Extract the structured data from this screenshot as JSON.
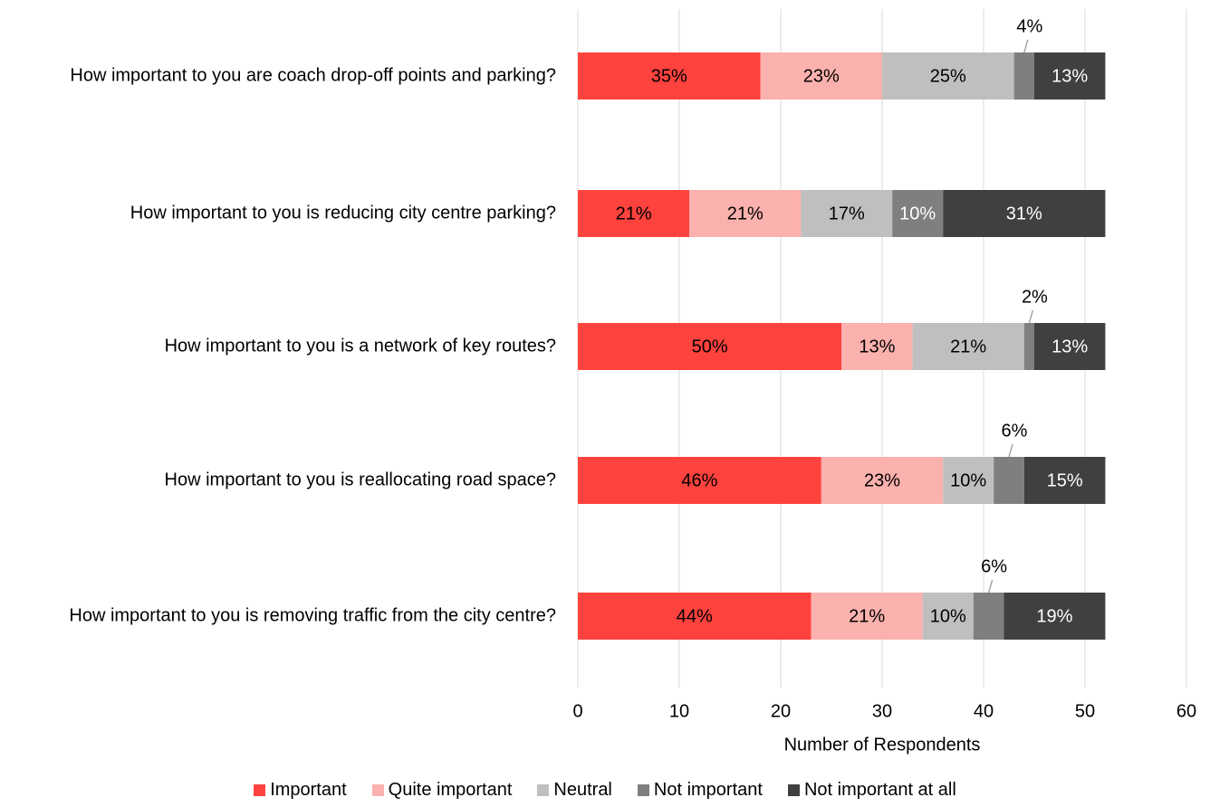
{
  "chart_data": {
    "type": "stacked-barh",
    "categories": [
      "How important to you are coach drop-off points and parking?",
      "How important to you is reducing city centre parking?",
      "How important to you is a network of key routes?",
      "How important to you is reallocating road space?",
      "How important to you is removing traffic from the city centre?"
    ],
    "series": [
      {
        "name": "Important",
        "color": "#fe423d",
        "values": [
          18,
          11,
          26,
          24,
          23
        ],
        "value_labels": [
          "35%",
          "21%",
          "50%",
          "46%",
          "44%"
        ]
      },
      {
        "name": "Quite important",
        "color": "#fbb1ad",
        "values": [
          12,
          11,
          7,
          12,
          11
        ],
        "value_labels": [
          "23%",
          "21%",
          "13%",
          "23%",
          "21%"
        ]
      },
      {
        "name": "Neutral",
        "color": "#bfbfbf",
        "values": [
          13,
          9,
          11,
          5,
          5
        ],
        "value_labels": [
          "25%",
          "17%",
          "21%",
          "10%",
          "10%"
        ]
      },
      {
        "name": "Not important",
        "color": "#7f7f7f",
        "values": [
          2,
          5,
          1,
          3,
          3
        ],
        "value_labels": [
          "4%",
          "10%",
          "2%",
          "6%",
          "6%"
        ]
      },
      {
        "name": "Not important at all",
        "color": "#404040",
        "values": [
          7,
          16,
          7,
          8,
          10
        ],
        "value_labels": [
          "13%",
          "31%",
          "13%",
          "15%",
          "19%"
        ]
      }
    ],
    "xlabel": "Number of Respondents",
    "xlim": [
      0,
      60
    ],
    "xticks": [
      0,
      10,
      20,
      30,
      40,
      50,
      60
    ],
    "grid": true,
    "legend": "bottom"
  }
}
